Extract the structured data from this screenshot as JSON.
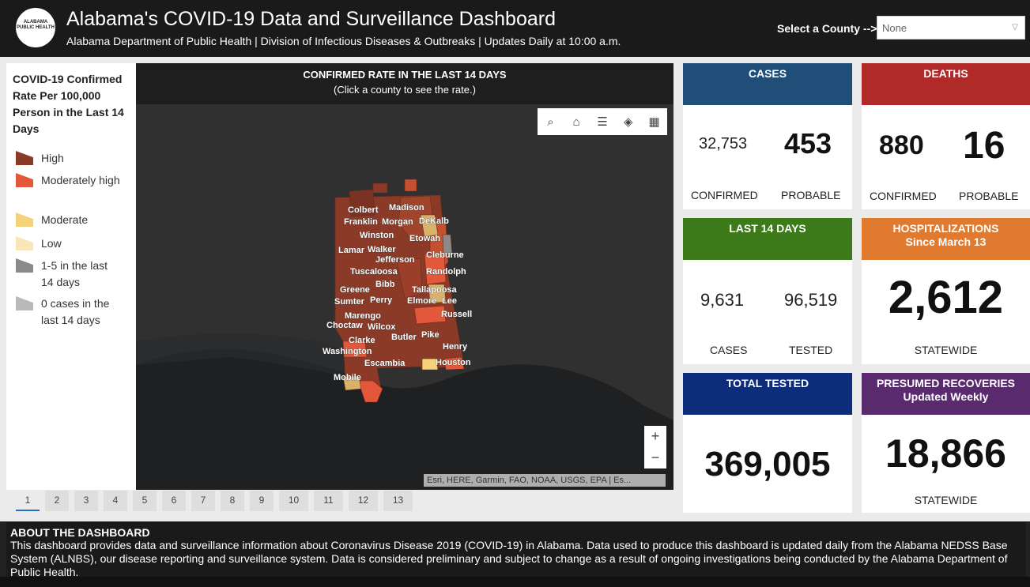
{
  "header": {
    "logo_text": "ALABAMA PUBLIC HEALTH",
    "title": "Alabama's COVID-19 Data and Surveillance Dashboard",
    "subtitle": "Alabama Department of Public Health | Division of Infectious Diseases & Outbreaks | Updates Daily at 10:00 a.m.",
    "county_label": "Select a County -->",
    "county_value": "None"
  },
  "legend": {
    "title": "COVID-19 Confirmed Rate Per 100,000 Person in the Last 14 Days",
    "items": [
      {
        "label": "High",
        "color": "#8b3a28"
      },
      {
        "label": "Moderately high",
        "color": "#e3573a"
      },
      {
        "label": "Moderate",
        "color": "#f5d27a"
      },
      {
        "label": "Low",
        "color": "#f8e6b8"
      },
      {
        "label": "1-5 in the last 14 days",
        "color": "#8a8a8a"
      },
      {
        "label": "0 cases in the last 14 days",
        "color": "#b9b9b9"
      }
    ]
  },
  "map": {
    "title": "CONFIRMED RATE IN THE LAST 14 DAYS",
    "subtitle": "(Click a county to see the rate.)",
    "attribution": "Esri, HERE, Garmin, FAO, NOAA, USGS, EPA | Es...",
    "county_labels": [
      "Colbert",
      "Madison",
      "Franklin",
      "Morgan",
      "DeKalb",
      "Winston",
      "Etowah",
      "Lamar",
      "Walker",
      "Jefferson",
      "Cleburne",
      "Tuscaloosa",
      "Randolph",
      "Bibb",
      "Greene",
      "Tallapoosa",
      "Sumter",
      "Perry",
      "Elmore",
      "Lee",
      "Marengo",
      "Russell",
      "Choctaw",
      "Wilcox",
      "Pike",
      "Butler",
      "Clarke",
      "Henry",
      "Washington",
      "Escambia",
      "Houston",
      "Mobile"
    ],
    "toolbar": [
      "search-icon",
      "home-icon",
      "legend-icon",
      "layers-icon",
      "qr-icon"
    ]
  },
  "cards": {
    "cases": {
      "title": "CASES",
      "confirmed": "32,753",
      "probable": "453",
      "confirmed_label": "CONFIRMED",
      "probable_label": "PROBABLE",
      "color": "#1f4e79"
    },
    "deaths": {
      "title": "DEATHS",
      "confirmed": "880",
      "probable": "16",
      "confirmed_label": "CONFIRMED",
      "probable_label": "PROBABLE",
      "color": "#b02a2a"
    },
    "last14": {
      "title": "LAST 14 DAYS",
      "cases": "9,631",
      "tested": "96,519",
      "cases_label": "CASES",
      "tested_label": "TESTED",
      "color": "#3c7a1a"
    },
    "hosp": {
      "title": "HOSPITALIZATIONS",
      "subtitle": "Since March 13",
      "value": "2,612",
      "label": "STATEWIDE",
      "color": "#e07a2e"
    },
    "tested": {
      "title": "TOTAL TESTED",
      "value": "369,005",
      "color": "#0d2d7a"
    },
    "recoveries": {
      "title": "PRESUMED RECOVERIES",
      "subtitle": "Updated Weekly",
      "value": "18,866",
      "label": "STATEWIDE",
      "color": "#5a2a6e"
    }
  },
  "pager": [
    "1",
    "2",
    "3",
    "4",
    "5",
    "6",
    "7",
    "8",
    "9",
    "10",
    "11",
    "12",
    "13"
  ],
  "about": {
    "title": "ABOUT THE DASHBOARD",
    "text": "This dashboard provides data and surveillance information about Coronavirus Disease 2019 (COVID-19) in Alabama. Data used to produce this dashboard is updated daily from the Alabama NEDSS Base System (ALNBS), our disease reporting and surveillance system. Data is considered preliminary and subject to change as a result of ongoing investigations being conducted by the Alabama Department of Public Health."
  }
}
